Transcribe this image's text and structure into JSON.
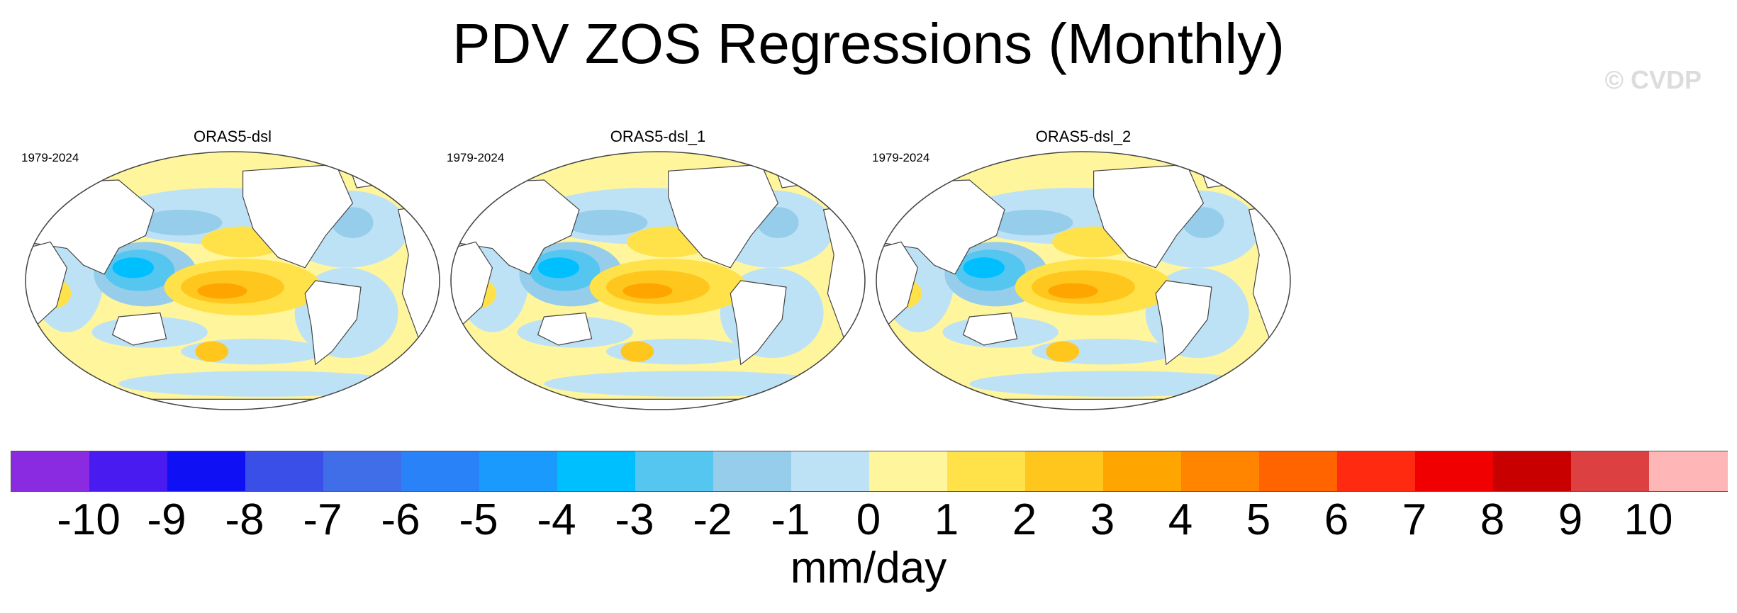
{
  "figure": {
    "title": "PDV ZOS Regressions (Monthly)",
    "copyright": "© CVDP",
    "units": "mm/day"
  },
  "panels": [
    {
      "name": "ORAS5-dsl",
      "period": "1979-2024"
    },
    {
      "name": "ORAS5-dsl_1",
      "period": "1979-2024"
    },
    {
      "name": "ORAS5-dsl_2",
      "period": "1979-2024"
    }
  ],
  "colorbar": {
    "colors": [
      "#8a2be2",
      "#4a1bf0",
      "#1010f5",
      "#3a4ee8",
      "#3f6ee8",
      "#2a82f8",
      "#1a9afc",
      "#00bfff",
      "#55c6f0",
      "#95cdea",
      "#bee2f5",
      "#fff59d",
      "#ffe24a",
      "#ffc61e",
      "#ffa500",
      "#ff8400",
      "#ff6400",
      "#ff2a10",
      "#f00000",
      "#c80000",
      "#dc4040",
      "#ffb6b6"
    ],
    "tick_labels": [
      "-10",
      "-9",
      "-8",
      "-7",
      "-6",
      "-5",
      "-4",
      "-3",
      "-2",
      "-1",
      "0",
      "1",
      "2",
      "3",
      "4",
      "5",
      "6",
      "7",
      "8",
      "9",
      "10"
    ]
  }
}
